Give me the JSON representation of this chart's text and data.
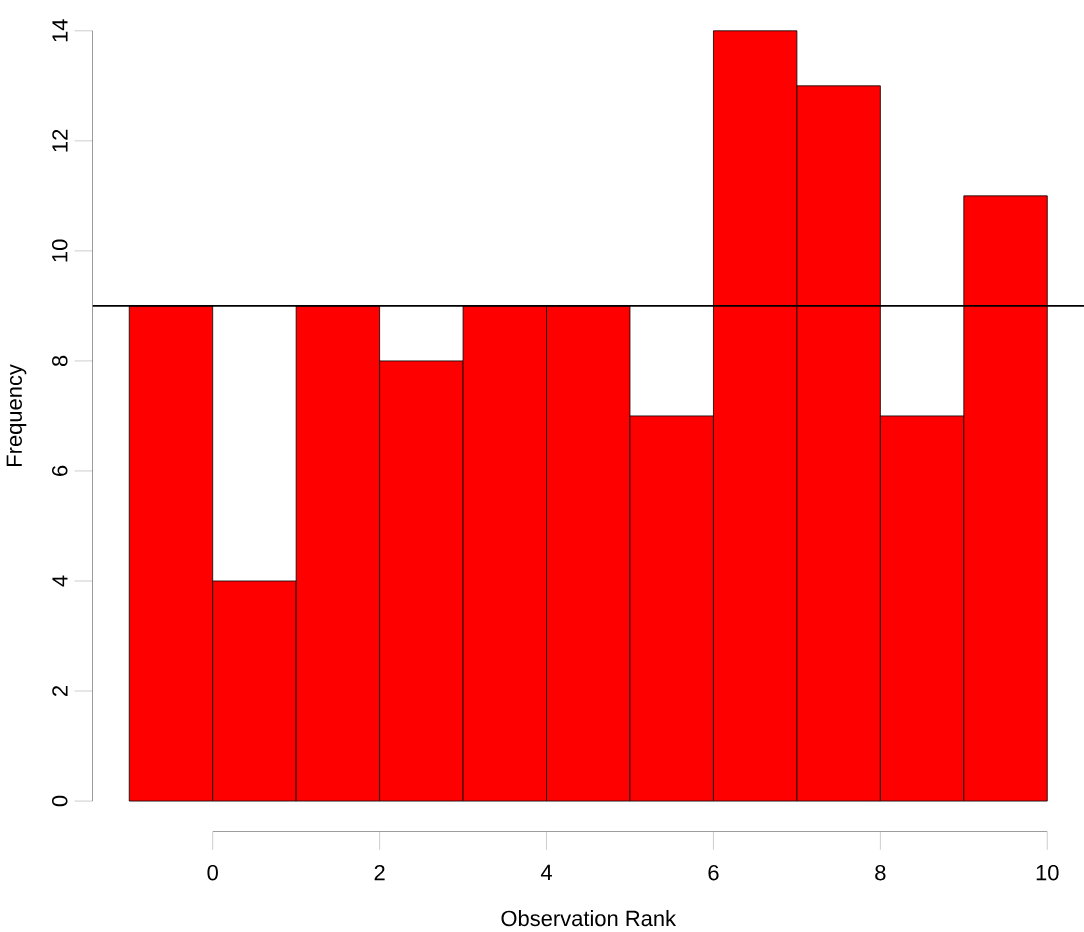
{
  "chart_data": {
    "type": "histogram",
    "xlabel": "Observation Rank",
    "ylabel": "Frequency",
    "bins": [
      -1,
      0,
      1,
      2,
      3,
      4,
      5,
      6,
      7,
      8,
      9,
      10
    ],
    "values": [
      9,
      4,
      9,
      8,
      9,
      9,
      7,
      14,
      13,
      7,
      11
    ],
    "color": "#ff0000",
    "xticks": [
      0,
      2,
      4,
      6,
      8,
      10
    ],
    "yticks": [
      0,
      2,
      4,
      6,
      8,
      10,
      12,
      14
    ],
    "ref_lines": [
      {
        "axis": "y",
        "value": 9,
        "color": "#000000"
      }
    ],
    "xlim": [
      -1.44,
      10.44
    ],
    "ylim": [
      0,
      14
    ]
  }
}
